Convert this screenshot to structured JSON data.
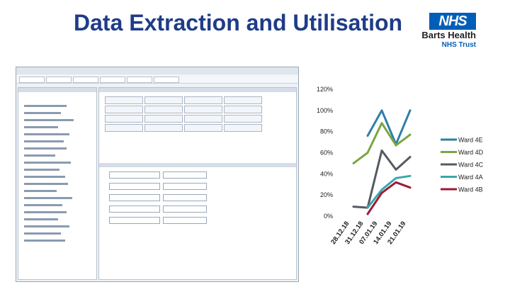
{
  "slide": {
    "title": "Data Extraction and Utilisation"
  },
  "logo": {
    "badge": "NHS",
    "org_line1": "Barts Health",
    "org_line2": "NHS Trust"
  },
  "colors": {
    "title": "#1f3c88",
    "nhs_blue": "#005eb8",
    "ward_4e": "#2e7fa6",
    "ward_4d": "#7aa642",
    "ward_4c": "#545a63",
    "ward_4a": "#3aa7ad",
    "ward_4b": "#9b1b37"
  },
  "chart_data": {
    "type": "line",
    "categories": [
      "28.12.18",
      "31.12.18",
      "07.01.19",
      "14.01.19",
      "21.01.19"
    ],
    "y_ticks": [
      "0%",
      "20%",
      "40%",
      "60%",
      "80%",
      "100%",
      "120%"
    ],
    "ylim": [
      0,
      1.2
    ],
    "grid": false,
    "legend_position": "right",
    "series": [
      {
        "name": "Ward 4E",
        "color": "#2e7fa6",
        "x": [
          1,
          2,
          3,
          4,
          5
        ],
        "values": [
          0.76,
          1.0,
          0.68,
          1.0,
          null
        ]
      },
      {
        "name": "Ward 4D",
        "color": "#7aa642",
        "x": [
          0,
          1,
          2,
          3,
          4,
          5
        ],
        "values": [
          0.5,
          0.6,
          0.88,
          0.67,
          0.77,
          null
        ]
      },
      {
        "name": "Ward 4C",
        "color": "#545a63",
        "x": [
          0,
          1,
          2,
          3,
          4,
          5
        ],
        "values": [
          0.09,
          0.08,
          0.62,
          0.44,
          0.56,
          null
        ]
      },
      {
        "name": "Ward 4A",
        "color": "#3aa7ad",
        "x": [
          1,
          2,
          3,
          4,
          5
        ],
        "values": [
          0.08,
          0.25,
          0.36,
          0.38,
          null
        ]
      },
      {
        "name": "Ward 4B",
        "color": "#9b1b37",
        "x": [
          1,
          2,
          3,
          4,
          5
        ],
        "values": [
          0.02,
          0.22,
          0.32,
          0.27,
          null
        ]
      }
    ]
  }
}
